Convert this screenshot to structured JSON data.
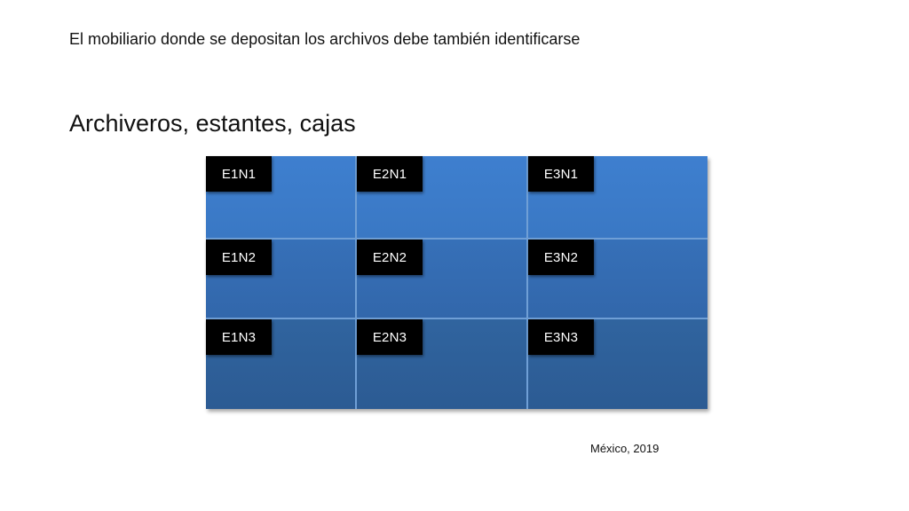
{
  "slide": {
    "subtitle": "El mobiliario donde se depositan los archivos debe también identificarse",
    "title": "Archiveros, estantes, cajas",
    "footer": "México, 2019"
  },
  "shelves": {
    "rows": [
      [
        "E1N1",
        "E2N1",
        "E3N1"
      ],
      [
        "E1N2",
        "E2N2",
        "E3N2"
      ],
      [
        "E1N3",
        "E2N3",
        "E3N3"
      ]
    ]
  },
  "colors": {
    "shelf_top": "#3e7fcf",
    "shelf_bottom": "#2c5b93",
    "divider": "#6f9fd6",
    "tag_background": "#000000",
    "tag_text": "#ffffff"
  }
}
